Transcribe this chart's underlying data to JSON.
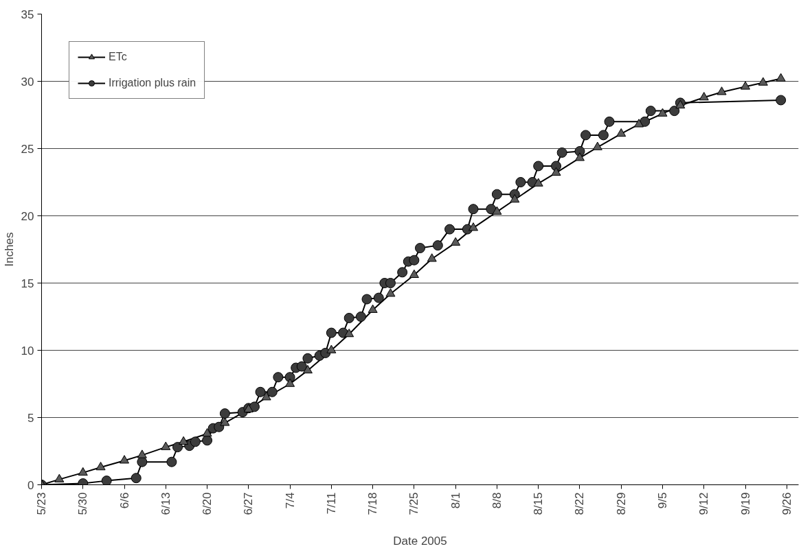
{
  "chart_data": {
    "type": "line",
    "xlabel": "Date 2005",
    "ylabel": "Inches",
    "xlim": [
      "2005-05-23",
      "2005-09-28"
    ],
    "ylim": [
      0,
      35
    ],
    "yticks": [
      0,
      5,
      10,
      15,
      20,
      25,
      30,
      35
    ],
    "xticks": [
      {
        "value": "2005-05-23",
        "label": "5/23"
      },
      {
        "value": "2005-05-30",
        "label": "5/30"
      },
      {
        "value": "2005-06-06",
        "label": "6/6"
      },
      {
        "value": "2005-06-13",
        "label": "6/13"
      },
      {
        "value": "2005-06-20",
        "label": "6/20"
      },
      {
        "value": "2005-06-27",
        "label": "6/27"
      },
      {
        "value": "2005-07-04",
        "label": "7/4"
      },
      {
        "value": "2005-07-11",
        "label": "7/11"
      },
      {
        "value": "2005-07-18",
        "label": "7/18"
      },
      {
        "value": "2005-07-25",
        "label": "7/25"
      },
      {
        "value": "2005-08-01",
        "label": "8/1"
      },
      {
        "value": "2005-08-08",
        "label": "8/8"
      },
      {
        "value": "2005-08-15",
        "label": "8/15"
      },
      {
        "value": "2005-08-22",
        "label": "8/22"
      },
      {
        "value": "2005-08-29",
        "label": "8/29"
      },
      {
        "value": "2005-09-05",
        "label": "9/5"
      },
      {
        "value": "2005-09-12",
        "label": "9/12"
      },
      {
        "value": "2005-09-19",
        "label": "9/19"
      },
      {
        "value": "2005-09-26",
        "label": "9/26"
      }
    ],
    "grid": "y",
    "legend": "top left",
    "series": [
      {
        "name": "ETc",
        "color": "#5a5a5a",
        "marker": "triangle",
        "x": [
          "2005-05-23",
          "2005-05-26",
          "2005-05-30",
          "2005-06-02",
          "2005-06-06",
          "2005-06-09",
          "2005-06-13",
          "2005-06-16",
          "2005-06-20",
          "2005-06-23",
          "2005-06-27",
          "2005-06-30",
          "2005-07-04",
          "2005-07-07",
          "2005-07-11",
          "2005-07-14",
          "2005-07-18",
          "2005-07-21",
          "2005-07-25",
          "2005-07-28",
          "2005-08-01",
          "2005-08-04",
          "2005-08-08",
          "2005-08-11",
          "2005-08-15",
          "2005-08-18",
          "2005-08-22",
          "2005-08-25",
          "2005-08-29",
          "2005-09-01",
          "2005-09-05",
          "2005-09-08",
          "2005-09-12",
          "2005-09-15",
          "2005-09-19",
          "2005-09-22",
          "2005-09-25"
        ],
        "values": [
          0,
          0.4,
          0.9,
          1.3,
          1.8,
          2.2,
          2.8,
          3.2,
          3.8,
          4.6,
          5.6,
          6.5,
          7.5,
          8.5,
          10.0,
          11.2,
          13.0,
          14.2,
          15.6,
          16.8,
          18.0,
          19.1,
          20.3,
          21.2,
          22.4,
          23.2,
          24.3,
          25.1,
          26.1,
          26.8,
          27.6,
          28.2,
          28.8,
          29.2,
          29.6,
          29.9,
          30.2
        ]
      },
      {
        "name": "Irrigation plus rain",
        "color": "#3c3c3c",
        "marker": "circle",
        "x": [
          "2005-05-23",
          "2005-05-30",
          "2005-06-03",
          "2005-06-08",
          "2005-06-09",
          "2005-06-14",
          "2005-06-15",
          "2005-06-17",
          "2005-06-18",
          "2005-06-20",
          "2005-06-21",
          "2005-06-22",
          "2005-06-23",
          "2005-06-26",
          "2005-06-27",
          "2005-06-28",
          "2005-06-29",
          "2005-07-01",
          "2005-07-02",
          "2005-07-04",
          "2005-07-05",
          "2005-07-06",
          "2005-07-07",
          "2005-07-09",
          "2005-07-10",
          "2005-07-11",
          "2005-07-13",
          "2005-07-14",
          "2005-07-16",
          "2005-07-17",
          "2005-07-19",
          "2005-07-20",
          "2005-07-21",
          "2005-07-23",
          "2005-07-24",
          "2005-07-25",
          "2005-07-26",
          "2005-07-29",
          "2005-07-31",
          "2005-08-03",
          "2005-08-04",
          "2005-08-07",
          "2005-08-08",
          "2005-08-11",
          "2005-08-12",
          "2005-08-14",
          "2005-08-15",
          "2005-08-18",
          "2005-08-19",
          "2005-08-22",
          "2005-08-23",
          "2005-08-26",
          "2005-08-27",
          "2005-09-02",
          "2005-09-03",
          "2005-09-07",
          "2005-09-08",
          "2005-09-25"
        ],
        "values": [
          0,
          0.1,
          0.3,
          0.5,
          1.7,
          1.7,
          2.8,
          2.9,
          3.2,
          3.3,
          4.2,
          4.3,
          5.3,
          5.4,
          5.7,
          5.8,
          6.9,
          6.9,
          8.0,
          8.0,
          8.7,
          8.8,
          9.4,
          9.6,
          9.8,
          11.3,
          11.3,
          12.4,
          12.5,
          13.8,
          13.9,
          15.0,
          15.0,
          15.8,
          16.6,
          16.7,
          17.6,
          17.8,
          19.0,
          19.0,
          20.5,
          20.5,
          21.6,
          21.6,
          22.5,
          22.5,
          23.7,
          23.7,
          24.7,
          24.8,
          26.0,
          26.0,
          27.0,
          27.0,
          27.8,
          27.8,
          28.4,
          28.6
        ]
      }
    ]
  }
}
